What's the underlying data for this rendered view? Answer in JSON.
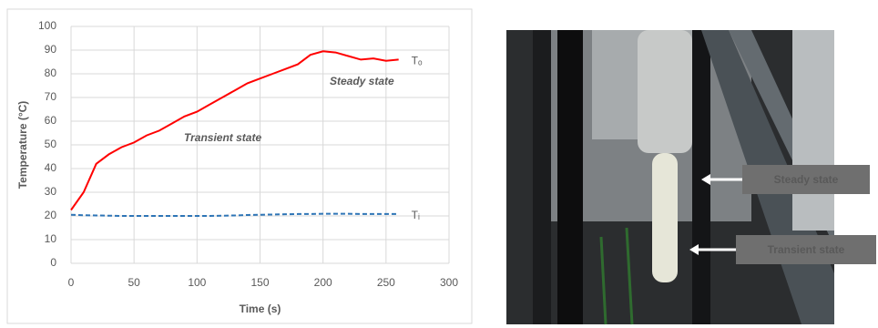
{
  "chart_data": {
    "type": "line",
    "x": [
      0,
      10,
      20,
      30,
      40,
      50,
      60,
      70,
      80,
      90,
      100,
      110,
      120,
      130,
      140,
      150,
      160,
      170,
      180,
      190,
      200,
      210,
      220,
      230,
      240,
      250,
      260
    ],
    "series": [
      {
        "name": "Tₒ",
        "color": "#ff0000",
        "dashed": false,
        "values": [
          22.5,
          30,
          42,
          46,
          49,
          51,
          54,
          56,
          59,
          62,
          64,
          67,
          70,
          73,
          76,
          78,
          80,
          82,
          84,
          88,
          89.5,
          89,
          87.5,
          86,
          86.5,
          85.5,
          86
        ]
      },
      {
        "name": "Tᵢ",
        "color": "#2e75b6",
        "dashed": true,
        "values": [
          20.5,
          20.3,
          20.2,
          20.1,
          20,
          20,
          20,
          20,
          20,
          20,
          20,
          20,
          20.1,
          20.2,
          20.4,
          20.5,
          20.6,
          20.7,
          20.8,
          20.8,
          20.9,
          20.9,
          20.9,
          20.8,
          20.8,
          20.8,
          20.8
        ]
      }
    ],
    "xlim": [
      0,
      300
    ],
    "xticks": [
      0,
      50,
      100,
      150,
      200,
      250,
      300
    ],
    "ylim": [
      0,
      100
    ],
    "yticks": [
      0,
      10,
      20,
      30,
      40,
      50,
      60,
      70,
      80,
      90,
      100
    ],
    "grid": true,
    "x_label": "Time (s)",
    "y_label": "Temperature (°C)",
    "annotations": [
      "Steady state",
      "Transient state"
    ]
  },
  "photo": {
    "labels": [
      "Steady state",
      "Transient state"
    ]
  }
}
